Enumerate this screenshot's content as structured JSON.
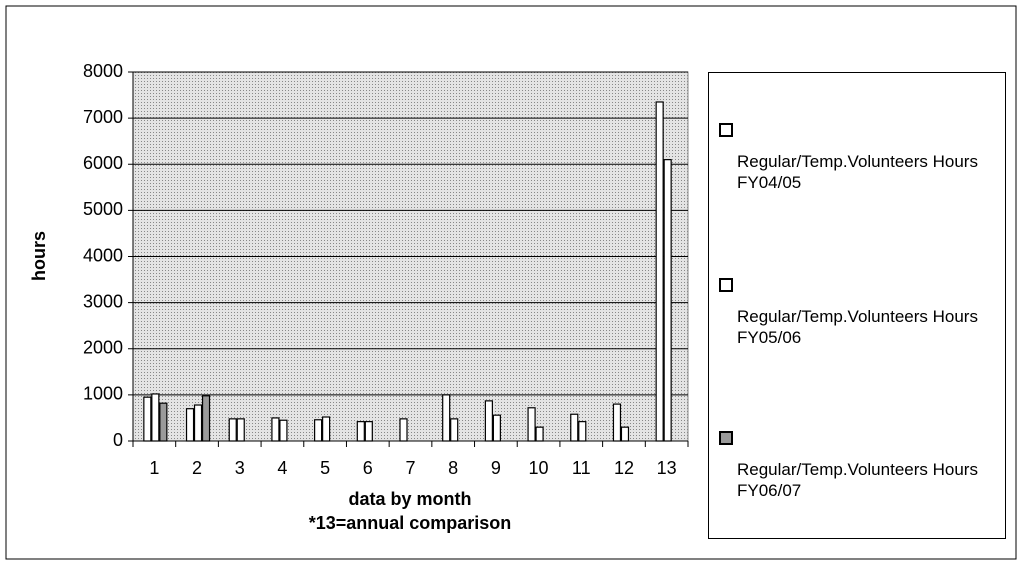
{
  "chart_data": {
    "type": "bar",
    "ylabel": "hours",
    "xlabel": "data by month",
    "annotation": "*13=annual comparison",
    "categories": [
      "1",
      "2",
      "3",
      "4",
      "5",
      "6",
      "7",
      "8",
      "9",
      "10",
      "11",
      "12",
      "13"
    ],
    "series": [
      {
        "name": "Regular/Temp.Volunteers Hours FY04/05",
        "color": "#ffffff",
        "values": [
          950,
          700,
          480,
          500,
          460,
          420,
          480,
          1000,
          870,
          720,
          580,
          800,
          7350
        ]
      },
      {
        "name": "Regular/Temp.Volunteers Hours FY05/06",
        "color": "#ffffff",
        "values": [
          1020,
          780,
          480,
          450,
          520,
          420,
          null,
          480,
          560,
          300,
          420,
          300,
          6100
        ]
      },
      {
        "name": "Regular/Temp.Volunteers Hours FY06/07",
        "color": "#9a9a9a",
        "values": [
          820,
          980,
          null,
          null,
          null,
          null,
          null,
          null,
          null,
          null,
          null,
          null,
          null
        ]
      }
    ],
    "ylim": [
      0,
      8000
    ],
    "yticks": [
      0,
      1000,
      2000,
      3000,
      4000,
      5000,
      6000,
      7000,
      8000
    ],
    "grid": true,
    "legend": "right"
  }
}
